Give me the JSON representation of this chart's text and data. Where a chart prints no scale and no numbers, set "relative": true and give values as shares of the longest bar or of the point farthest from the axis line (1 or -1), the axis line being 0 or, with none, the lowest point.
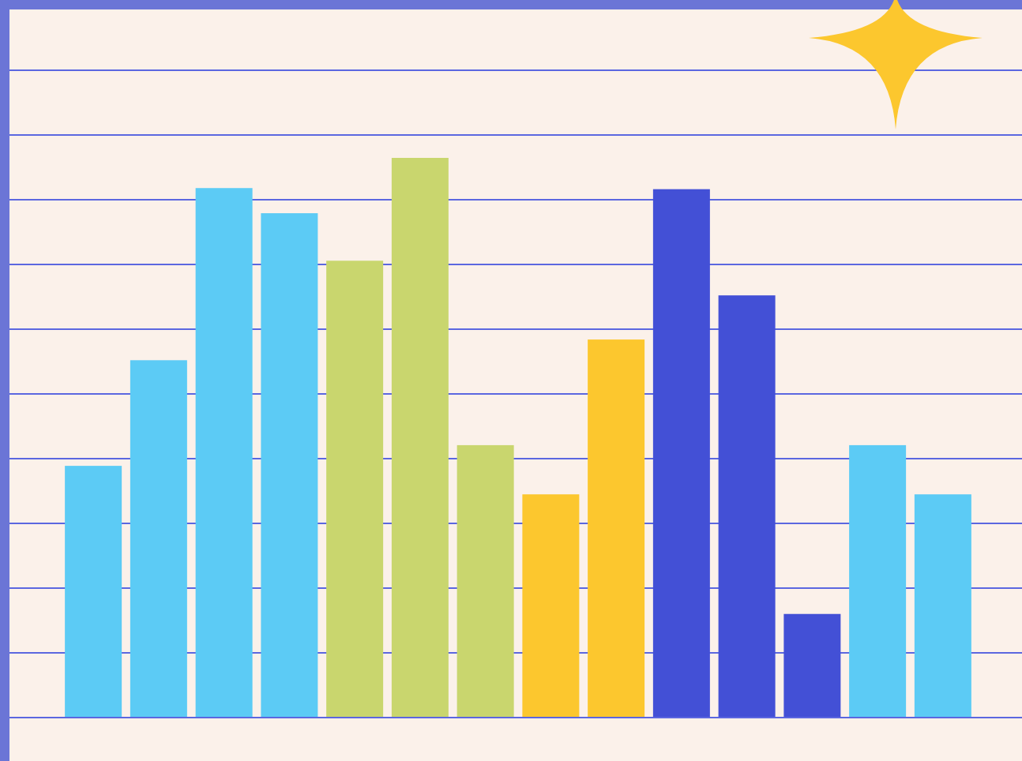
{
  "chart_data": {
    "type": "bar",
    "relative": true,
    "categories": [
      null,
      null,
      null,
      null,
      null,
      null,
      null,
      null,
      null,
      null,
      null,
      null,
      null,
      null
    ],
    "values": [
      0.449,
      0.638,
      0.946,
      0.901,
      0.816,
      1,
      0.486,
      0.398,
      0.675,
      0.944,
      0.754,
      0.184,
      0.486,
      0.398
    ],
    "colors": [
      "#5ccbf5",
      "#5ccbf5",
      "#5ccbf5",
      "#5ccbf5",
      "#c9d66e",
      "#c9d66e",
      "#c9d66e",
      "#fcc72e",
      "#fcc72e",
      "#4350d6",
      "#4350d6",
      "#4350d6",
      "#5ccbf5",
      "#5ccbf5"
    ]
  }
}
